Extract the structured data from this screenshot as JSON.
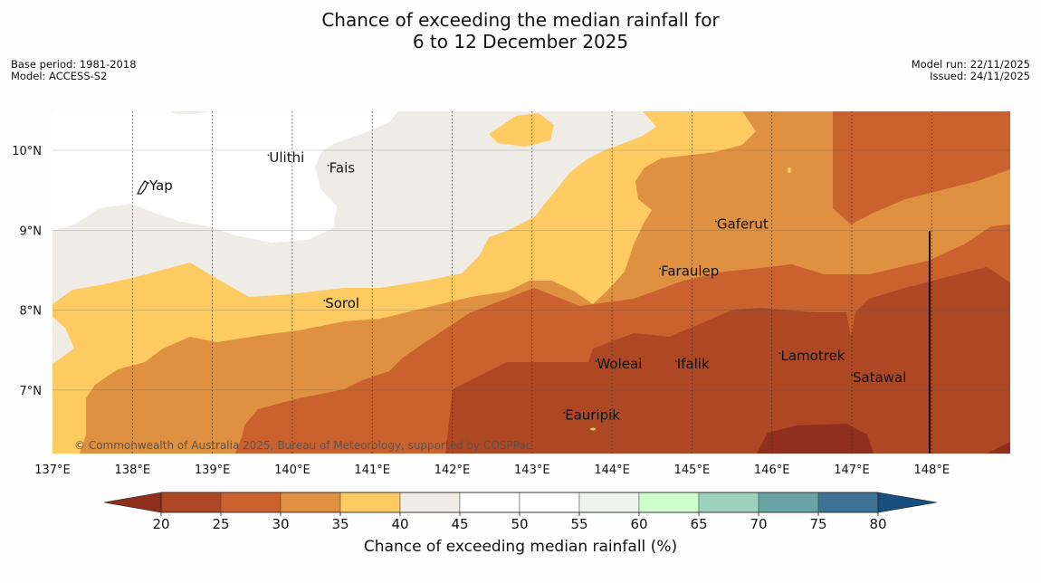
{
  "title_line1": "Chance of exceeding the median rainfall for",
  "title_line2": "6 to 12 December 2025",
  "meta_left": {
    "base_period": "Base period: 1981-2018",
    "model": "Model: ACCESS-S2"
  },
  "meta_right": {
    "model_run": "Model run: 22/11/2025",
    "issued": "Issued: 24/11/2025"
  },
  "copyright": "© Commonwealth of Australia 2025, Bureau of Meteorology, supported by COSPPac",
  "colors": {
    "c20": "#8f2f1d",
    "c25": "#ad4724",
    "c30": "#c9622f",
    "c35": "#df9141",
    "c40": "#fecb63",
    "c45": "#efebe5",
    "c50": "#ffffff",
    "c55": "#ffffff",
    "c60": "#eaf4ea",
    "c65": "#ccffcc",
    "c70": "#9ed1bd",
    "c75": "#69a3a4",
    "c80": "#3e7395",
    "c80plus": "#174f7e"
  },
  "map": {
    "lat_labels": [
      "10°N",
      "9°N",
      "8°N",
      "7°N"
    ],
    "lon_labels": [
      "137°E",
      "138°E",
      "139°E",
      "140°E",
      "141°E",
      "142°E",
      "143°E",
      "144°E",
      "145°E",
      "146°E",
      "147°E",
      "148°E"
    ],
    "places": [
      {
        "name": "Ulithi",
        "lon": 139.7,
        "lat": 9.85
      },
      {
        "name": "Fais",
        "lon": 140.45,
        "lat": 9.72
      },
      {
        "name": "Yap",
        "lon": 138.2,
        "lat": 9.5
      },
      {
        "name": "Gaferut",
        "lon": 145.3,
        "lat": 9.02
      },
      {
        "name": "Faraulep",
        "lon": 144.6,
        "lat": 8.43
      },
      {
        "name": "Sorol",
        "lon": 140.4,
        "lat": 8.03
      },
      {
        "name": "Lamotrek",
        "lon": 146.1,
        "lat": 7.37
      },
      {
        "name": "Satawal",
        "lon": 147.0,
        "lat": 7.1
      },
      {
        "name": "Woleai",
        "lon": 143.8,
        "lat": 7.27
      },
      {
        "name": "Ifalik",
        "lon": 144.8,
        "lat": 7.27
      },
      {
        "name": "Eauripik",
        "lon": 143.4,
        "lat": 6.63
      }
    ]
  },
  "colorbar": {
    "ticks": [
      "20",
      "25",
      "30",
      "35",
      "40",
      "45",
      "50",
      "55",
      "60",
      "65",
      "70",
      "75",
      "80"
    ],
    "label": "Chance of exceeding median rainfall (%)"
  }
}
